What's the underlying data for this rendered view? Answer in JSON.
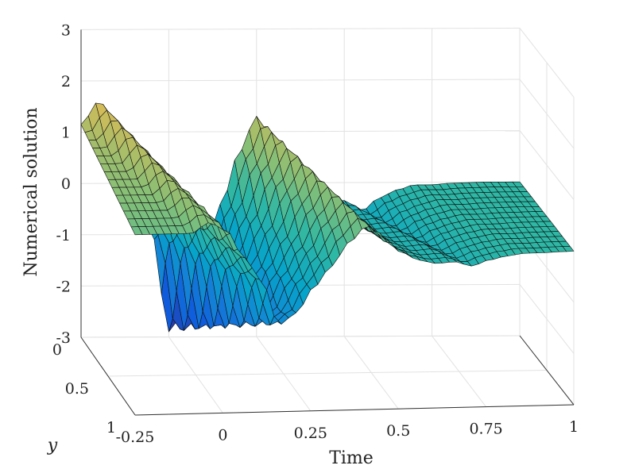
{
  "chart_data": {
    "type": "surface",
    "title": "",
    "xlabel": "Time",
    "ylabel": "y",
    "zlabel": "Numerical solution",
    "xlim": [
      -0.25,
      1
    ],
    "ylim": [
      0,
      1
    ],
    "zlim": [
      -3,
      3
    ],
    "x_ticks": [
      "-0.25",
      "0",
      "0.25",
      "0.5",
      "0.75",
      "1"
    ],
    "y_ticks": [
      "0",
      "0.5",
      "1"
    ],
    "z_ticks": [
      "3",
      "2",
      "1",
      "0",
      "-1",
      "-2",
      "-3"
    ],
    "grid": true,
    "colormap": "parula",
    "colormap_stops": [
      "#352a87",
      "#0f5cdd",
      "#1481d6",
      "#06a4ca",
      "#2eb7a4",
      "#87bf77",
      "#d1bb59",
      "#fec832",
      "#f9fb0e"
    ],
    "view": {
      "azimuth": -15,
      "elevation": 15
    },
    "surface_profile_y0": {
      "time": [
        -0.25,
        -0.2,
        -0.15,
        -0.1,
        -0.05,
        0.0,
        0.05,
        0.1,
        0.15,
        0.2,
        0.25,
        0.3,
        0.35,
        0.4,
        0.45,
        0.5,
        0.55,
        0.6,
        0.65,
        0.7,
        0.75,
        0.8,
        0.85,
        0.9,
        0.95,
        1.0
      ],
      "value": [
        1.15,
        1.6,
        1.25,
        0.05,
        -0.95,
        -2.9,
        -2.4,
        -1.3,
        -0.4,
        0.6,
        1.3,
        0.75,
        0.1,
        -0.25,
        -0.4,
        -0.35,
        -0.55,
        -0.3,
        -0.15,
        -0.05,
        -0.05,
        -0.02,
        -0.01,
        0.0,
        0.0,
        0.0
      ]
    }
  }
}
